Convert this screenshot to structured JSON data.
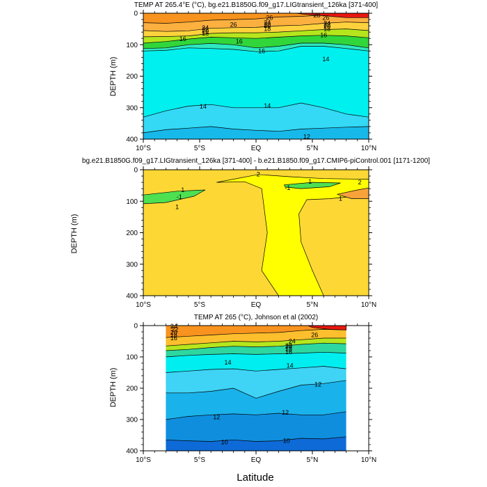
{
  "chart_data": [
    {
      "type": "contour",
      "title": "TEMP AT 265.4°E (°C), bg.e21.B1850G.f09_g17.LIGtransient_126ka [371-400]",
      "xlabel": "",
      "ylabel": "DEPTH (m)",
      "xlim": [
        -10,
        10
      ],
      "ylim": [
        400,
        0
      ],
      "x_ticks": [
        "10°S",
        "5°S",
        "EQ",
        "5°N",
        "10°N"
      ],
      "y_ticks": [
        "0",
        "100",
        "200",
        "300",
        "400"
      ],
      "contour_labels": [
        "26",
        "24",
        "22",
        "20",
        "18",
        "16",
        "16",
        "16",
        "16",
        "14",
        "14",
        "14",
        "12",
        "28",
        "26",
        "24",
        "22",
        "20",
        "18",
        "26",
        "24",
        "22",
        "20",
        "18"
      ],
      "bands": [
        {
          "top": [
            0,
            0,
            0,
            0,
            0,
            0,
            0,
            0,
            0,
            0,
            0
          ],
          "bottom": [
            30,
            32,
            28,
            22,
            20,
            18,
            12,
            10,
            6,
            4,
            5
          ],
          "color": "#f7931e"
        },
        {
          "top": [
            30,
            32,
            28,
            22,
            20,
            18,
            12,
            10,
            6,
            4,
            5
          ],
          "bottom": [
            55,
            58,
            56,
            48,
            46,
            45,
            40,
            38,
            32,
            28,
            30
          ],
          "color": "#fbb040"
        },
        {
          "top": [
            55,
            58,
            56,
            48,
            46,
            45,
            40,
            38,
            32,
            28,
            30
          ],
          "bottom": [
            75,
            74,
            72,
            64,
            62,
            62,
            60,
            56,
            52,
            50,
            55
          ],
          "color": "#ffd23d"
        },
        {
          "top": [
            75,
            74,
            72,
            64,
            62,
            62,
            60,
            56,
            52,
            50,
            55
          ],
          "bottom": [
            95,
            90,
            82,
            76,
            78,
            80,
            76,
            72,
            70,
            72,
            78
          ],
          "color": "#b5e61d"
        },
        {
          "top": [
            95,
            90,
            82,
            76,
            78,
            80,
            76,
            72,
            70,
            72,
            78
          ],
          "bottom": [
            112,
            110,
            100,
            96,
            100,
            110,
            105,
            95,
            95,
            100,
            110
          ],
          "color": "#31d63a"
        },
        {
          "top": [
            112,
            110,
            100,
            96,
            100,
            110,
            105,
            95,
            95,
            100,
            110
          ],
          "bottom": [
            120,
            118,
            110,
            112,
            115,
            122,
            120,
            105,
            105,
            112,
            120
          ],
          "color": "#2ee8c0"
        },
        {
          "top": [
            120,
            118,
            110,
            112,
            115,
            122,
            120,
            105,
            105,
            112,
            120
          ],
          "bottom": [
            330,
            310,
            295,
            290,
            300,
            300,
            300,
            285,
            300,
            320,
            330
          ],
          "color": "#00f0f0"
        },
        {
          "top": [
            330,
            310,
            295,
            290,
            300,
            300,
            300,
            285,
            300,
            320,
            330
          ],
          "bottom": [
            380,
            370,
            365,
            360,
            368,
            372,
            375,
            368,
            365,
            362,
            360
          ],
          "color": "#33d9f5"
        },
        {
          "top": [
            380,
            370,
            365,
            360,
            368,
            372,
            375,
            368,
            365,
            362,
            360
          ],
          "bottom": [
            400,
            400,
            400,
            400,
            400,
            400,
            400,
            400,
            400,
            400,
            400
          ],
          "color": "#17b9ea"
        }
      ],
      "patches": [
        {
          "points": [
            [
              3.5,
              0
            ],
            [
              10,
              0
            ],
            [
              10,
              14
            ],
            [
              8,
              14
            ],
            [
              6,
              8
            ],
            [
              4.5,
              4
            ]
          ],
          "color": "#e8170f"
        }
      ]
    },
    {
      "type": "contour",
      "title": "bg.e21.B1850G.f09_g17.LIGtransient_126ka [371-400] - b.e21.B1850.f09_g17.CMIP6-piControl.001 [1171-1200]",
      "xlabel": "",
      "ylabel": "DEPTH (m)",
      "xlim": [
        -10,
        10
      ],
      "ylim": [
        400,
        0
      ],
      "x_ticks": [
        "10°S",
        "5°S",
        "EQ",
        "5°N",
        "10°N"
      ],
      "y_ticks": [
        "0",
        "100",
        "200",
        "300",
        "400"
      ],
      "contour_labels": [
        "1",
        "-1",
        "1",
        "2",
        "1",
        "-1",
        "1",
        "2"
      ],
      "bands": [
        {
          "top": [
            0,
            0,
            0,
            0,
            0,
            0,
            0,
            0,
            0,
            0,
            0
          ],
          "bottom": [
            400,
            400,
            400,
            400,
            400,
            400,
            400,
            400,
            400,
            400,
            400
          ],
          "color": "#fdd835"
        }
      ],
      "patches": [
        {
          "points": [
            [
              -3.5,
              40
            ],
            [
              -1,
              38
            ],
            [
              0.5,
              60
            ],
            [
              1,
              200
            ],
            [
              0.5,
              320
            ],
            [
              2,
              400
            ],
            [
              6,
              400
            ],
            [
              5,
              320
            ],
            [
              4,
              230
            ],
            [
              3.8,
              140
            ],
            [
              4.5,
              95
            ],
            [
              6.5,
              92
            ],
            [
              8.5,
              85
            ],
            [
              10,
              88
            ],
            [
              10,
              30
            ],
            [
              6,
              28
            ],
            [
              3,
              22
            ],
            [
              0.2,
              15
            ]
          ],
          "color": "#ffff00"
        },
        {
          "points": [
            [
              -10,
              80
            ],
            [
              -7,
              68
            ],
            [
              -4.5,
              64
            ],
            [
              -5.5,
              84
            ],
            [
              -8,
              104
            ],
            [
              -10,
              108
            ]
          ],
          "color": "#4de051"
        },
        {
          "points": [
            [
              2.5,
              48
            ],
            [
              5,
              40
            ],
            [
              7.5,
              42
            ],
            [
              6.5,
              54
            ],
            [
              4,
              60
            ],
            [
              2.6,
              55
            ]
          ],
          "color": "#4de051"
        },
        {
          "points": [
            [
              7.2,
              78
            ],
            [
              9,
              64
            ],
            [
              10,
              58
            ],
            [
              10,
              92
            ],
            [
              8.5,
              92
            ]
          ],
          "color": "#f7a23a"
        }
      ]
    },
    {
      "type": "contour",
      "title": "TEMP AT 265 (°C), Johnson et al (2002)",
      "xlabel": "Latitude",
      "ylabel": "DEPTH (m)",
      "xlim": [
        -10,
        10
      ],
      "ylim": [
        400,
        0
      ],
      "data_xlim": [
        -8,
        8
      ],
      "x_ticks": [
        "10°S",
        "5°S",
        "EQ",
        "5°N",
        "10°N"
      ],
      "y_ticks": [
        "0",
        "100",
        "200",
        "300",
        "400"
      ],
      "contour_labels": [
        "24",
        "22",
        "20",
        "18",
        "16",
        "14",
        "14",
        "12",
        "12",
        "12",
        "10",
        "10",
        "22",
        "20",
        "18",
        "16",
        "24",
        "26"
      ],
      "bands": [
        {
          "top": [
            0,
            0,
            0,
            0,
            0,
            0,
            0,
            0,
            0
          ],
          "bottom": [
            38,
            34,
            30,
            26,
            24,
            22,
            16,
            12,
            14
          ],
          "color": "#f7931e"
        },
        {
          "top": [
            38,
            34,
            30,
            26,
            24,
            22,
            16,
            12,
            14
          ],
          "bottom": [
            65,
            60,
            55,
            50,
            52,
            50,
            45,
            40,
            40
          ],
          "color": "#fdbf2d"
        },
        {
          "top": [
            65,
            60,
            55,
            50,
            52,
            50,
            45,
            40,
            40
          ],
          "bottom": [
            80,
            76,
            70,
            66,
            68,
            66,
            60,
            56,
            58
          ],
          "color": "#b5e61d"
        },
        {
          "top": [
            80,
            76,
            70,
            66,
            68,
            66,
            60,
            56,
            58
          ],
          "bottom": [
            100,
            95,
            92,
            90,
            92,
            90,
            88,
            85,
            88
          ],
          "color": "#2ed6a0"
        },
        {
          "top": [
            100,
            95,
            92,
            90,
            92,
            90,
            88,
            85,
            88
          ],
          "bottom": [
            150,
            145,
            140,
            138,
            145,
            140,
            135,
            130,
            138
          ],
          "color": "#00eef0"
        },
        {
          "top": [
            150,
            145,
            140,
            138,
            145,
            140,
            135,
            130,
            138
          ],
          "bottom": [
            215,
            215,
            210,
            200,
            232,
            210,
            190,
            185,
            175
          ],
          "color": "#3fd3f5"
        },
        {
          "top": [
            215,
            215,
            210,
            200,
            232,
            210,
            190,
            185,
            175
          ],
          "bottom": [
            300,
            290,
            285,
            282,
            285,
            280,
            285,
            285,
            275
          ],
          "color": "#1ab2ea"
        },
        {
          "top": [
            300,
            290,
            285,
            282,
            285,
            280,
            285,
            285,
            275
          ],
          "bottom": [
            365,
            368,
            370,
            365,
            370,
            368,
            360,
            362,
            355
          ],
          "color": "#0f8ede"
        },
        {
          "top": [
            365,
            368,
            370,
            365,
            370,
            368,
            360,
            362,
            355
          ],
          "bottom": [
            400,
            400,
            400,
            400,
            400,
            400,
            400,
            400,
            400
          ],
          "color": "#0e6ad6"
        }
      ],
      "patches": [
        {
          "points": [
            [
              4.6,
              0
            ],
            [
              8,
              0
            ],
            [
              8,
              14
            ],
            [
              6.5,
              12
            ],
            [
              5,
              6
            ]
          ],
          "color": "#e8170f"
        }
      ]
    }
  ]
}
